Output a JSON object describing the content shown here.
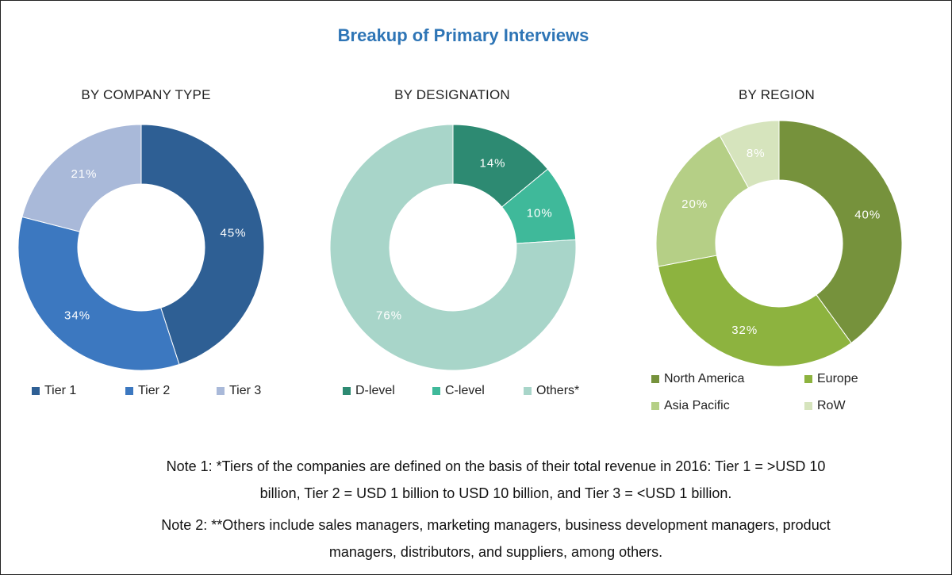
{
  "title": "Breakup of Primary Interviews",
  "chart_data": [
    {
      "type": "pie",
      "title": "BY COMPANY TYPE",
      "categories": [
        "Tier 1",
        "Tier 2",
        "Tier 3"
      ],
      "values": [
        45,
        34,
        21
      ],
      "labels": [
        "45%",
        "34%",
        "21%"
      ],
      "colors": [
        "#2e5f94",
        "#3c78c0",
        "#a9b9d9"
      ]
    },
    {
      "type": "pie",
      "title": "BY DESIGNATION",
      "categories": [
        "D-level",
        "C-level",
        "Others*"
      ],
      "values": [
        14,
        10,
        76
      ],
      "labels": [
        "14%",
        "10%",
        "76%"
      ],
      "colors": [
        "#2d8a72",
        "#3fb99a",
        "#a8d5c9"
      ]
    },
    {
      "type": "pie",
      "title": "BY REGION",
      "categories": [
        "North America",
        "Europe",
        "Asia Pacific",
        "RoW"
      ],
      "values": [
        40,
        32,
        20,
        8
      ],
      "labels": [
        "40%",
        "32%",
        "20%",
        "8%"
      ],
      "colors": [
        "#76923c",
        "#8db33f",
        "#b5cf86",
        "#d6e4bd"
      ]
    }
  ],
  "notes": {
    "note1_line1": "Note 1: *Tiers of the companies are defined on the basis of their total revenue in 2016: Tier 1 = >USD 10",
    "note1_line2": "billion, Tier 2 = USD 1 billion to USD 10 billion, and Tier 3 = <USD 1 billion.",
    "note2_line1": "Note 2: **Others include sales managers, marketing managers, business development managers, product",
    "note2_line2": "managers, distributors, and suppliers, among others."
  }
}
